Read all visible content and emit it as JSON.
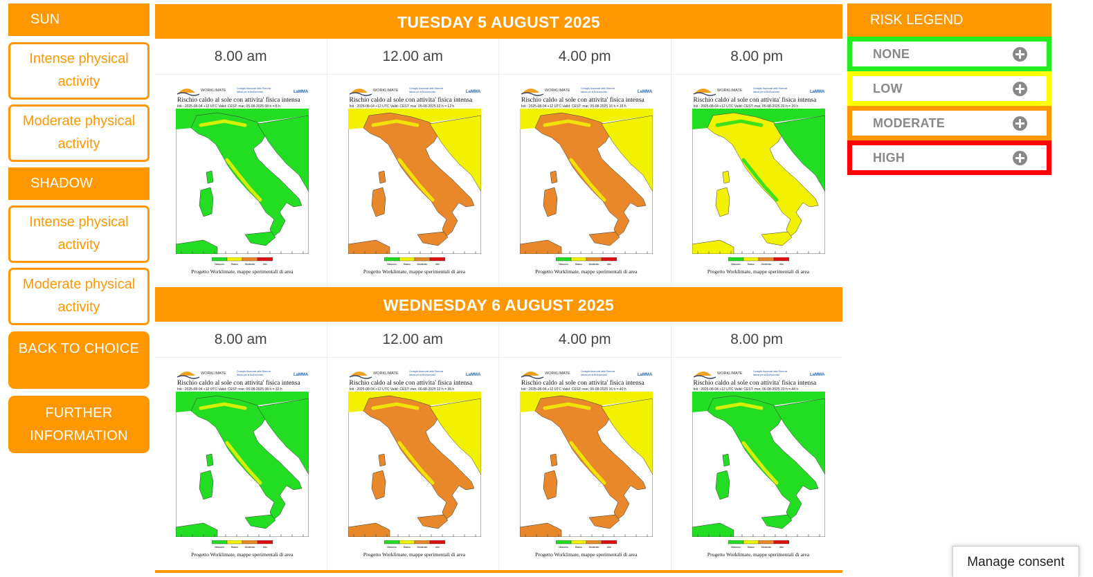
{
  "sidebar": {
    "sun_heading": "SUN",
    "sun_options": [
      "Intense physical activity",
      "Moderate physical activity"
    ],
    "shadow_heading": "SHADOW",
    "shadow_options": [
      "Intense physical activity",
      "Moderate physical activity"
    ],
    "back_button": "BACK TO CHOICE",
    "info_button": "FURTHER INFORMATION"
  },
  "days": [
    {
      "heading": "TUESDAY 5 AUGUST 2025",
      "times": [
        "8.00 am",
        "12.00 am",
        "4.00 pm",
        "8.00 pm"
      ],
      "map_subtitles": [
        "Init : 2025-08-04 +12 UTC   Valid: CEST: mar, 05-08-2025 08 h = 8 h",
        "Init : 2025-08-04 +12 UTC   Valid: CEST: mar, 05-08-2025 12 h = 12 h",
        "Init : 2025-08-04 +12 UTC   Valid: CEST: mar, 05-08-2025 16 h = 16 h",
        "Init : 2025-08-04 +12 UTC   Valid: CEST: mar, 05-08-2025 20 h = 20 h"
      ],
      "risk_levels": [
        "none",
        "moderate",
        "moderate",
        "low"
      ]
    },
    {
      "heading": "WEDNESDAY 6 AUGUST 2025",
      "times": [
        "8.00 am",
        "12.00 am",
        "4.00 pm",
        "8.00 pm"
      ],
      "map_subtitles": [
        "Init : 2025-08-04 +12 UTC   Valid: CEST: mer, 06-08-2025 08 h = 32 h",
        "Init : 2025-08-04 +12 UTC   Valid: CEST: mer, 06-08-2025 12 h = 36 h",
        "Init : 2025-08-04 +12 UTC   Valid: CEST: mer, 06-08-2025 16 h = 40 h",
        "Init : 2025-08-04 +12 UTC   Valid: CEST: mer, 06-08-2025 20 h = 44 h"
      ],
      "risk_levels": [
        "none",
        "moderate",
        "moderate",
        "none"
      ]
    }
  ],
  "map_common": {
    "logo_left": "WORKLIMATE",
    "logo_mid_1": "Consiglio Nazionale delle Ricerche",
    "logo_mid_2": "Istituto per la BioEconomia",
    "logo_right": "LaMMA",
    "title": "Rischio caldo al sole con attivita' fisica intensa",
    "scale_labels": [
      "Nessuno",
      "Basso",
      "Moderato",
      "Alto"
    ],
    "credit": "Progetto Worklimate, mappe   sperimentali di area"
  },
  "legend": {
    "heading": "RISK LEGEND",
    "items": [
      {
        "label": "NONE",
        "color": "#22ee22"
      },
      {
        "label": "LOW",
        "color": "#ffff00"
      },
      {
        "label": "MODERATE",
        "color": "#ff9800"
      },
      {
        "label": "HIGH",
        "color": "#ff0000"
      }
    ]
  },
  "colors": {
    "accent": "#ff9800",
    "none": "#22dd22",
    "low": "#f2f200",
    "moderate": "#e8882a",
    "high": "#dd1111"
  },
  "consent": {
    "label": "Manage consent"
  }
}
